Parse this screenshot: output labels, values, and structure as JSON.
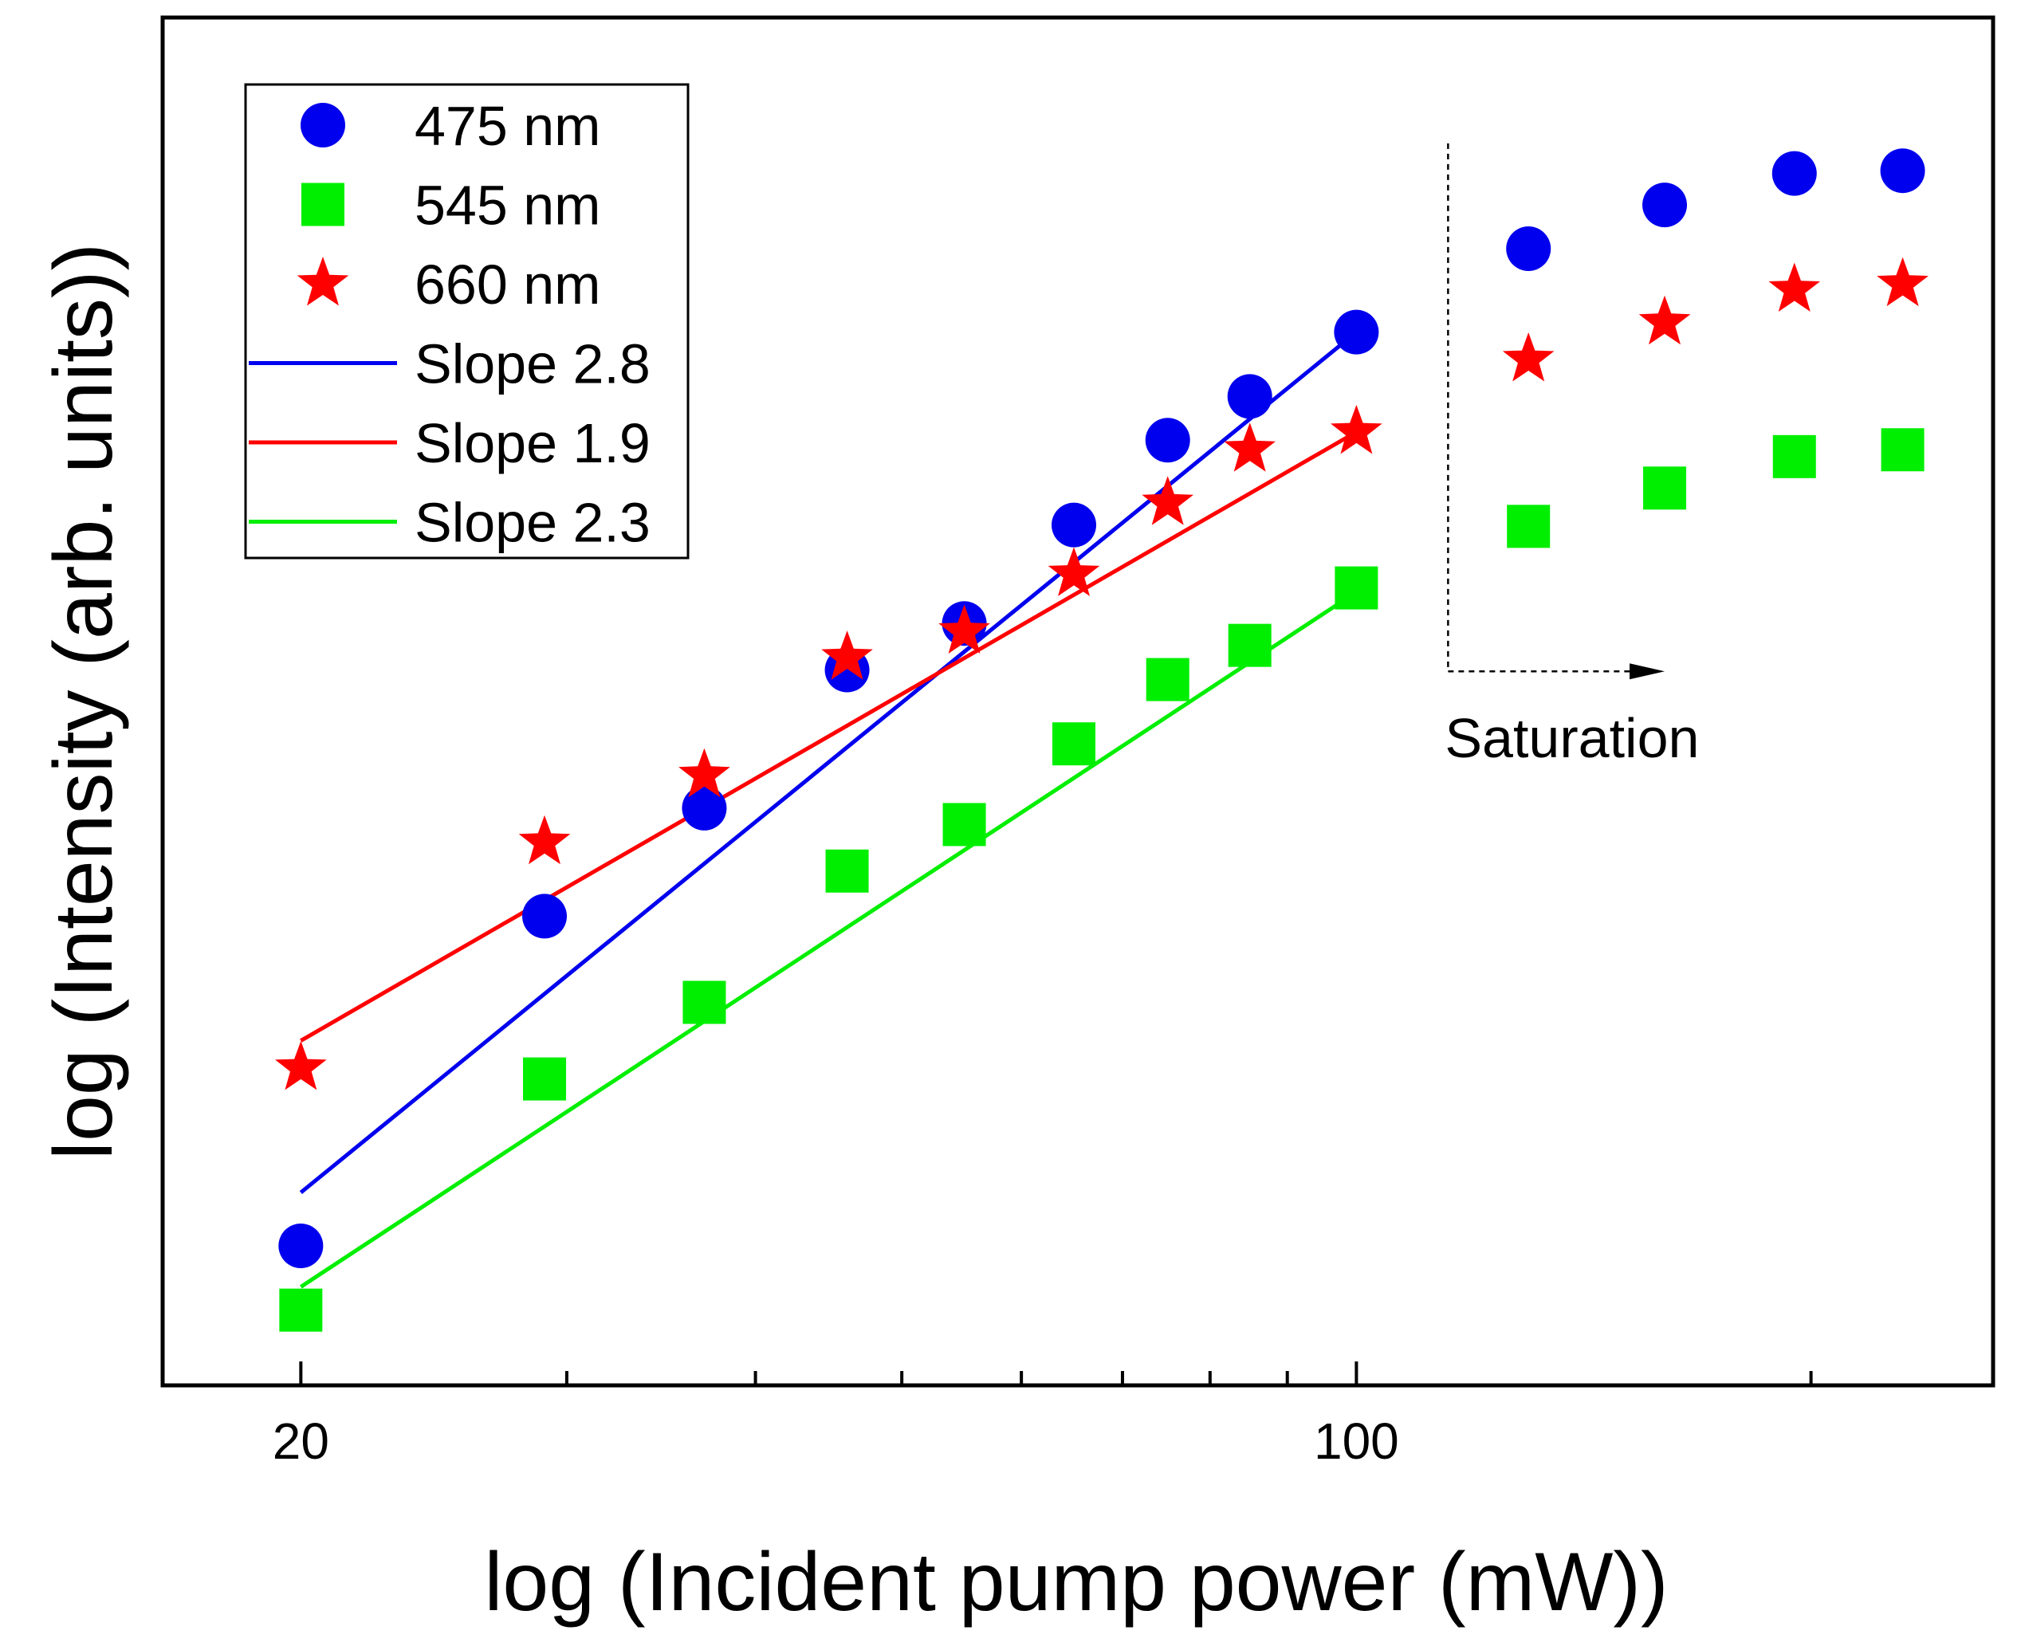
{
  "chart_data": {
    "type": "scatter",
    "title": "",
    "xlabel": "log (Incident pump power (mW))",
    "ylabel": "log (Intensity (arb. units))",
    "x_scale": "log",
    "xlim": [
      16.2,
      264
    ],
    "ylim": [
      0,
      100
    ],
    "grid": false,
    "legend_position": "top-left",
    "x_ticks": [
      {
        "value": 20,
        "label": "20",
        "major": true
      },
      {
        "value": 30,
        "label": "",
        "major": false
      },
      {
        "value": 40,
        "label": "",
        "major": false
      },
      {
        "value": 50,
        "label": "",
        "major": false
      },
      {
        "value": 60,
        "label": "",
        "major": false
      },
      {
        "value": 70,
        "label": "",
        "major": false
      },
      {
        "value": 80,
        "label": "",
        "major": false
      },
      {
        "value": 90,
        "label": "",
        "major": false
      },
      {
        "value": 100,
        "label": "100",
        "major": true
      },
      {
        "value": 200,
        "label": "",
        "major": false
      }
    ],
    "series": [
      {
        "name": "475 nm",
        "marker": "circle",
        "color": "#0000ee",
        "x": [
          20,
          29,
          37,
          46,
          55,
          65,
          75,
          85,
          100,
          130,
          160,
          195,
          230
        ],
        "y": [
          10.2,
          34.3,
          42.2,
          52.3,
          55.7,
          62.9,
          69.1,
          72.3,
          77.0,
          83.1,
          86.3,
          88.6,
          88.8
        ]
      },
      {
        "name": "545 nm",
        "marker": "square",
        "color": "#00ee00",
        "x": [
          20,
          29,
          37,
          46,
          55,
          65,
          75,
          85,
          100,
          130,
          160,
          195,
          230
        ],
        "y": [
          5.5,
          22.4,
          28.0,
          37.6,
          41.0,
          46.9,
          51.6,
          54.1,
          58.3,
          62.8,
          65.6,
          67.9,
          68.4
        ]
      },
      {
        "name": "660 nm",
        "marker": "star",
        "color": "#ff0000",
        "x": [
          20,
          29,
          37,
          46,
          55,
          65,
          75,
          85,
          100,
          130,
          160,
          195,
          230
        ],
        "y": [
          23.2,
          39.7,
          44.6,
          53.2,
          55.1,
          59.3,
          64.5,
          68.4,
          69.7,
          75.0,
          77.7,
          80.1,
          80.5
        ]
      }
    ],
    "fit_lines": [
      {
        "name": "Slope 2.8",
        "color": "#0000ee",
        "x": [
          20,
          100
        ],
        "y": [
          14.1,
          77.0
        ]
      },
      {
        "name": "Slope 1.9",
        "color": "#ff0000",
        "x": [
          20,
          100
        ],
        "y": [
          25.2,
          69.7
        ]
      },
      {
        "name": "Slope 2.3",
        "color": "#00ee00",
        "x": [
          20,
          100
        ],
        "y": [
          7.2,
          58.0
        ]
      }
    ],
    "legend": [
      "475 nm",
      "545 nm",
      "660 nm",
      "Slope 2.8",
      "Slope 1.9",
      "Slope 2.3"
    ],
    "annotation": {
      "text": "Saturation",
      "arrow_from_x": 115,
      "arrow_to_x": 160,
      "arrow_top_y": 90.8,
      "arrow_y": 52.2
    }
  }
}
